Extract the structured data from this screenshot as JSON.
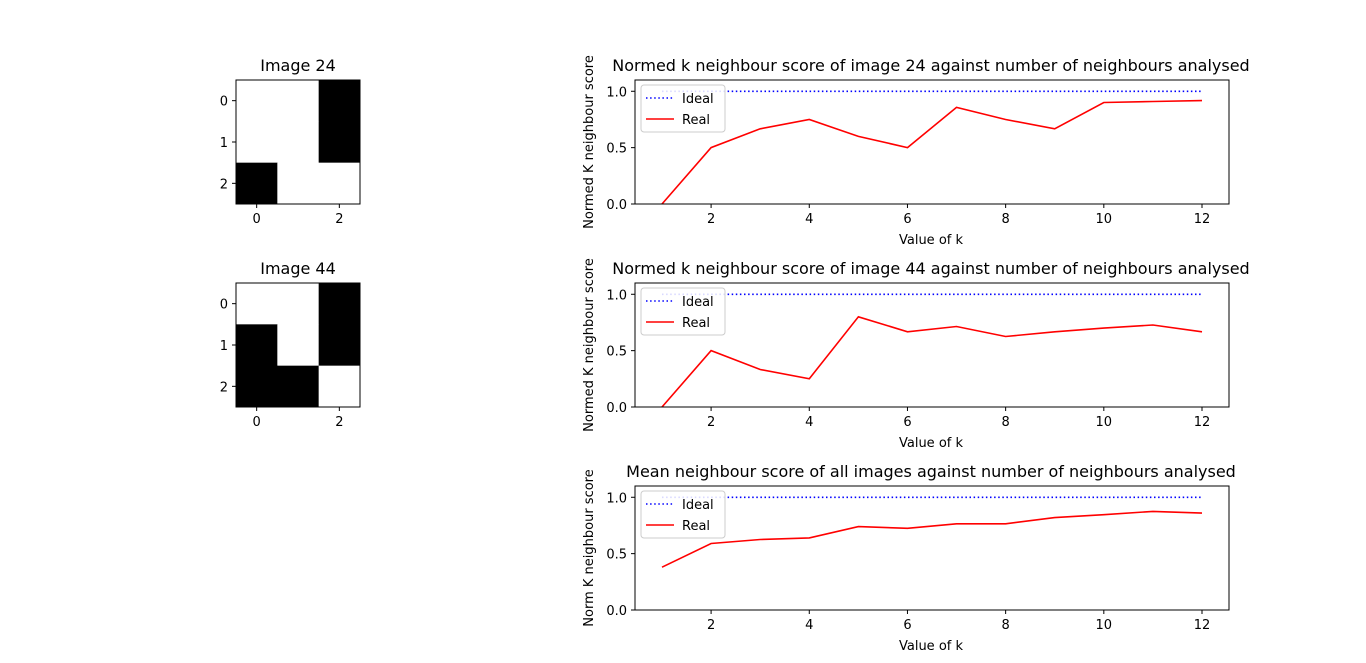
{
  "images": [
    {
      "title": "Image 24",
      "grid": [
        [
          0,
          0,
          1
        ],
        [
          0,
          0,
          1
        ],
        [
          1,
          0,
          0
        ]
      ],
      "xticks": [
        "0",
        "2"
      ],
      "yticks": [
        "0",
        "1",
        "2"
      ]
    },
    {
      "title": "Image 44",
      "grid": [
        [
          0,
          0,
          1
        ],
        [
          1,
          0,
          1
        ],
        [
          1,
          1,
          0
        ]
      ],
      "xticks": [
        "0",
        "2"
      ],
      "yticks": [
        "0",
        "1",
        "2"
      ]
    }
  ],
  "colors": {
    "ideal": "#0000ff",
    "real": "#ff0000",
    "black_pixel": "#000000",
    "white_pixel": "#ffffff"
  },
  "chart_data": [
    {
      "type": "line",
      "title": "Normed k neighbour score of image 24 against number of neighbours analysed",
      "xlabel": "Value of k",
      "ylabel": "Normed K neighbour score",
      "xlim": [
        0.45,
        12.55
      ],
      "ylim": [
        0,
        1.1
      ],
      "xticks": [
        2,
        4,
        6,
        8,
        10,
        12
      ],
      "yticks": [
        0.0,
        0.5,
        1.0
      ],
      "ytick_labels": [
        "0.0",
        "0.5",
        "1.0"
      ],
      "grid": false,
      "legend": "top-left",
      "x": [
        1,
        2,
        3,
        4,
        5,
        6,
        7,
        8,
        9,
        10,
        11,
        12
      ],
      "series": [
        {
          "name": "Ideal",
          "style": "dotted",
          "values": [
            1,
            1,
            1,
            1,
            1,
            1,
            1,
            1,
            1,
            1,
            1,
            1
          ]
        },
        {
          "name": "Real",
          "style": "solid",
          "values": [
            0.0,
            0.5,
            0.667,
            0.75,
            0.6,
            0.5,
            0.857,
            0.75,
            0.667,
            0.9,
            0.909,
            0.917
          ]
        }
      ]
    },
    {
      "type": "line",
      "title": "Normed k neighbour score of image 44 against number of neighbours analysed",
      "xlabel": "Value of k",
      "ylabel": "Normed K neighbour score",
      "xlim": [
        0.45,
        12.55
      ],
      "ylim": [
        0,
        1.1
      ],
      "xticks": [
        2,
        4,
        6,
        8,
        10,
        12
      ],
      "yticks": [
        0.0,
        0.5,
        1.0
      ],
      "ytick_labels": [
        "0.0",
        "0.5",
        "1.0"
      ],
      "grid": false,
      "legend": "top-left",
      "x": [
        1,
        2,
        3,
        4,
        5,
        6,
        7,
        8,
        9,
        10,
        11,
        12
      ],
      "series": [
        {
          "name": "Ideal",
          "style": "dotted",
          "values": [
            1,
            1,
            1,
            1,
            1,
            1,
            1,
            1,
            1,
            1,
            1,
            1
          ]
        },
        {
          "name": "Real",
          "style": "solid",
          "values": [
            0.0,
            0.5,
            0.333,
            0.25,
            0.8,
            0.667,
            0.714,
            0.625,
            0.667,
            0.7,
            0.727,
            0.667
          ]
        }
      ]
    },
    {
      "type": "line",
      "title": "Mean neighbour score of all images against number of neighbours analysed",
      "xlabel": "Value of k",
      "ylabel": "Norm K neighbour score",
      "xlim": [
        0.45,
        12.55
      ],
      "ylim": [
        0,
        1.1
      ],
      "xticks": [
        2,
        4,
        6,
        8,
        10,
        12
      ],
      "yticks": [
        0.0,
        0.5,
        1.0
      ],
      "ytick_labels": [
        "0.0",
        "0.5",
        "1.0"
      ],
      "grid": false,
      "legend": "top-left",
      "x": [
        1,
        2,
        3,
        4,
        5,
        6,
        7,
        8,
        9,
        10,
        11,
        12
      ],
      "series": [
        {
          "name": "Ideal",
          "style": "dotted",
          "values": [
            1,
            1,
            1,
            1,
            1,
            1,
            1,
            1,
            1,
            1,
            1,
            1
          ]
        },
        {
          "name": "Real",
          "style": "solid",
          "values": [
            0.38,
            0.59,
            0.625,
            0.64,
            0.74,
            0.725,
            0.765,
            0.765,
            0.82,
            0.845,
            0.875,
            0.86
          ]
        }
      ]
    }
  ]
}
